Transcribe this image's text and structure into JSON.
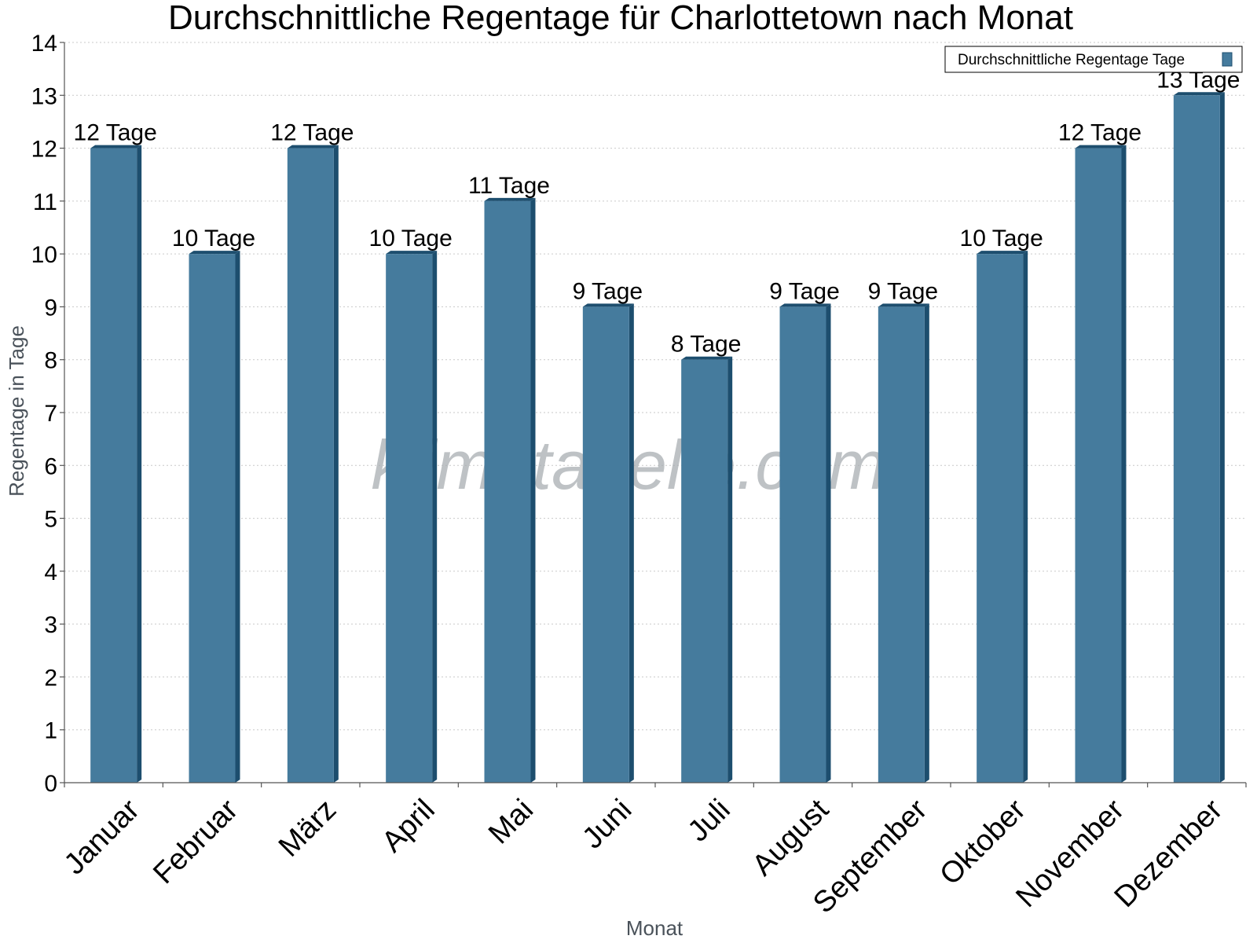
{
  "chart_data": {
    "type": "bar",
    "title": "Durchschnittliche Regentage für Charlottetown nach Monat",
    "xlabel": "Monat",
    "ylabel": "Regentage in Tage",
    "ylim": [
      0,
      14
    ],
    "yticks": [
      0,
      1,
      2,
      3,
      4,
      5,
      6,
      7,
      8,
      9,
      10,
      11,
      12,
      13,
      14
    ],
    "grid": true,
    "legend_position": "top-right",
    "categories": [
      "Januar",
      "Februar",
      "März",
      "April",
      "Mai",
      "Juni",
      "Juli",
      "August",
      "September",
      "Oktober",
      "November",
      "Dezember"
    ],
    "series": [
      {
        "name": "Durchschnittliche Regentage Tage",
        "values": [
          12,
          10,
          12,
          10,
          11,
          9,
          8,
          9,
          9,
          10,
          12,
          13
        ],
        "labels": [
          "12 Tage",
          "10 Tage",
          "12 Tage",
          "10 Tage",
          "11 Tage",
          "9 Tage",
          "8 Tage",
          "9 Tage",
          "9 Tage",
          "10 Tage",
          "12 Tage",
          "13 Tage"
        ],
        "color": "#457b9d",
        "side_color": "#1d4e6e"
      }
    ],
    "watermark": "klimatabelle.com"
  }
}
